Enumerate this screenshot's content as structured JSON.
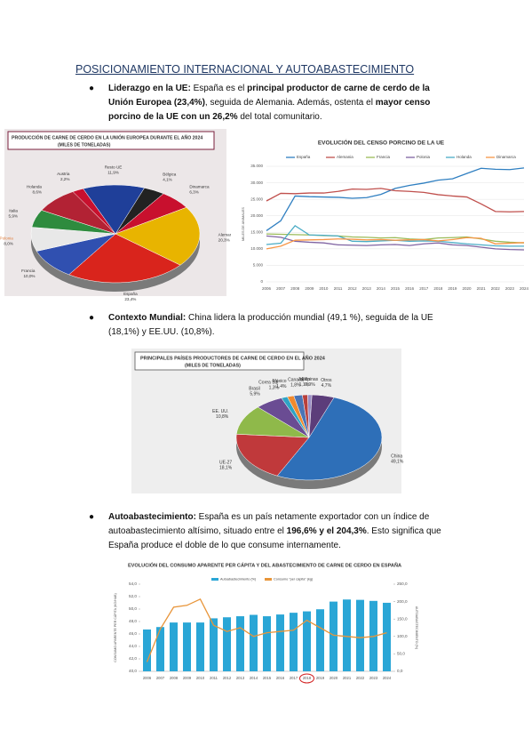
{
  "document": {
    "heading": "POSICIONAMIENTO INTERNACIONAL Y AUTOABASTECIMIENTO",
    "bullets": [
      {
        "runs": [
          {
            "text": "Liderazgo en la UE:",
            "bold": true
          },
          {
            "text": " España es el ",
            "bold": false
          },
          {
            "text": "principal productor de carne de cerdo de la Unión Europea (23,4%)",
            "bold": true
          },
          {
            "text": ", seguida de Alemania. Además, ostenta el ",
            "bold": false
          },
          {
            "text": "mayor censo porcino de la UE con un 26,2%",
            "bold": true
          },
          {
            "text": " del total comunitario.",
            "bold": false
          }
        ]
      },
      {
        "runs": [
          {
            "text": "Contexto Mundial:",
            "bold": true
          },
          {
            "text": " China lidera la producción mundial (49,1 %), seguida de la UE (18,1%) y EE.UU. (10,8%).",
            "bold": false
          }
        ]
      },
      {
        "runs": [
          {
            "text": "Autoabastecimiento:",
            "bold": true
          },
          {
            "text": " España es un país netamente exportador con un índice de autoabastecimiento altísimo, situado entre el ",
            "bold": false
          },
          {
            "text": "196,6% y el 204,3%",
            "bold": true
          },
          {
            "text": ". Esto significa que España produce el doble de lo que consume internamente.",
            "bold": false
          }
        ]
      }
    ]
  },
  "chart_data": [
    {
      "type": "pie",
      "title": "PRODUCCIÓN DE CARNE DE CERDO EN LA UNIÓN EUROPEA DURANTE EL AÑO 2024",
      "subtitle": "(MILES DE TONELADAS)",
      "categories": [
        "Bélgica",
        "Dinamarca",
        "Alemania",
        "España",
        "Francia",
        "Polonia",
        "Italia",
        "Holanda",
        "Austria",
        "Resto UE"
      ],
      "values": [
        4.1,
        6.3,
        20.3,
        23.4,
        10.0,
        8.0,
        5.9,
        8.6,
        2.2,
        11.9
      ],
      "value_labels": [
        "4,1%",
        "6,3%",
        "20,3%",
        "23,4%",
        "10,0%",
        "8,0%",
        "5,9%",
        "8,6%",
        "2,2%",
        "11,9%"
      ],
      "colors": [
        "#222222",
        "#c8102e",
        "#e8b400",
        "#d9241c",
        "#3050b0",
        "#e8e8e8",
        "#2e8b3e",
        "#b22234",
        "#c8102e",
        "#1f3f99"
      ]
    },
    {
      "type": "line",
      "title": "EVOLUCIÓN DEL CENSO PORCINO DE LA UE",
      "y_label": "MILES DE ANIMALES",
      "categories": [
        "2006",
        "2007",
        "2008",
        "2009",
        "2010",
        "2011",
        "2012",
        "2013",
        "2014",
        "2015",
        "2016",
        "2017",
        "2018",
        "2019",
        "2020",
        "2021",
        "2022",
        "2023",
        "2024"
      ],
      "series": [
        {
          "name": "España",
          "color": "#2f7fc1",
          "values": [
            15500,
            18500,
            26000,
            25800,
            25700,
            25600,
            25300,
            25500,
            26500,
            28300,
            29200,
            29900,
            30800,
            31200,
            32800,
            34400,
            34100,
            34000,
            34500
          ]
        },
        {
          "name": "Alemania",
          "color": "#c0504d",
          "values": [
            24500,
            26800,
            26700,
            26900,
            26900,
            27400,
            28100,
            28000,
            28300,
            27600,
            27400,
            27100,
            26400,
            26000,
            25700,
            23600,
            21300,
            21200,
            21300
          ]
        },
        {
          "name": "Francia",
          "color": "#9bbb59",
          "values": [
            14500,
            14400,
            14300,
            14200,
            14000,
            13900,
            13600,
            13500,
            13300,
            13400,
            13000,
            12800,
            13300,
            13400,
            13600,
            13000,
            12300,
            12000,
            11800
          ]
        },
        {
          "name": "Polonia",
          "color": "#8064a2",
          "values": [
            13900,
            13500,
            12300,
            12000,
            11800,
            11200,
            11100,
            11000,
            11200,
            11300,
            11000,
            11500,
            11800,
            11200,
            11000,
            10500,
            10000,
            9800,
            9700
          ]
        },
        {
          "name": "Holanda",
          "color": "#4bacc6",
          "values": [
            11300,
            11700,
            17000,
            14200,
            14100,
            13900,
            12300,
            12200,
            12400,
            12600,
            12300,
            12400,
            12300,
            11900,
            11500,
            11200,
            10900,
            10800,
            10800
          ]
        },
        {
          "name": "Dinamarca",
          "color": "#f79646",
          "values": [
            10000,
            10800,
            12600,
            12700,
            12800,
            13000,
            12900,
            12700,
            12800,
            12600,
            12700,
            12800,
            12400,
            12800,
            13400,
            13200,
            11500,
            11700,
            11900
          ]
        }
      ],
      "ylim": [
        0,
        35000
      ],
      "yticks": [
        0,
        {
          "value": 5000,
          "label": "5.000"
        },
        {
          "value": 10000,
          "label": "10.000"
        },
        {
          "value": 15000,
          "label": "15.000"
        },
        {
          "value": 20000,
          "label": "20.000"
        },
        {
          "value": 25000,
          "label": "25.000"
        },
        {
          "value": 30000,
          "label": "30.000"
        },
        {
          "value": 35000,
          "label": "35.000"
        }
      ],
      "grid": true
    },
    {
      "type": "pie",
      "title": "PRINCIPALES PAÍSES PRODUCTORES DE CARNE DE CERDO EN EL AÑO 2024",
      "subtitle": "(MILES DE TONELADAS)",
      "categories": [
        "China",
        "UE-27",
        "EE. UU.",
        "Brasil",
        "Corea Sur",
        "México",
        "Canadá",
        "Japón",
        "Filipinas",
        "Otros"
      ],
      "values": [
        49.1,
        18.1,
        10.8,
        5.9,
        1.3,
        1.4,
        1.8,
        1.1,
        0.9,
        4.7
      ],
      "value_labels": [
        "49,1%",
        "18,1%",
        "10,8%",
        "5,9%",
        "1,3%",
        "1,4%",
        "1,8%",
        "1,1%",
        "0,9%",
        "4,7%"
      ],
      "colors": [
        "#2e6fb8",
        "#c0393b",
        "#8fb94a",
        "#6a4c93",
        "#2fa3c4",
        "#f08a2e",
        "#4a74b5",
        "#b8403c",
        "#9a8ec4",
        "#5c3d7a"
      ]
    },
    {
      "type": "combo",
      "title": "EVOLUCIÓN DEL CONSUMO APARENTE PER CÁPITA Y DEL ABASTECIMIENTO DE CARNE DE CERDO EN ESPAÑA",
      "y_label": "CONSUMO APARENTE PER CÁPITA (KG/HAB)",
      "y2_label": "AUTOABASTECIMIENTO (%)",
      "categories": [
        "2006",
        "2007",
        "2008",
        "2009",
        "2010",
        "2011",
        "2012",
        "2013",
        "2014",
        "2015",
        "2016",
        "2017",
        "2018",
        "2019",
        "2020",
        "2021",
        "2022",
        "2023",
        "2024"
      ],
      "series": [
        {
          "name": "Autoabastecimiento (%)",
          "color": "#2aa6d6",
          "axis": "y2",
          "kind": "bar",
          "values": [
            120,
            127,
            140,
            140,
            140,
            152,
            155,
            158,
            162,
            158,
            163,
            168,
            172,
            178,
            200,
            206,
            205,
            202,
            196.6
          ]
        },
        {
          "name": "Consumo \"per cápita\" (kg)",
          "color": "#e8953a",
          "kind": "line",
          "values": [
            41.5,
            46.8,
            50.3,
            50.6,
            51.6,
            47.4,
            46.4,
            47.0,
            45.6,
            46.2,
            46.4,
            46.6,
            48.2,
            47.0,
            45.8,
            45.6,
            45.4,
            45.6,
            46.2
          ]
        }
      ],
      "ylim": [
        40,
        54
      ],
      "yticks": [
        {
          "value": 40,
          "label": "40,0"
        },
        {
          "value": 42,
          "label": "42,0"
        },
        {
          "value": 44,
          "label": "44,0"
        },
        {
          "value": 46,
          "label": "46,0"
        },
        {
          "value": 48,
          "label": "48,0"
        },
        {
          "value": 50,
          "label": "50,0"
        },
        {
          "value": 52,
          "label": "52,0"
        },
        {
          "value": 54,
          "label": "54,0"
        }
      ],
      "y2lim": [
        0,
        250
      ],
      "y2ticks": [
        {
          "value": 0,
          "label": "0,0"
        },
        {
          "value": 50,
          "label": "50,0"
        },
        {
          "value": 100,
          "label": "100,0"
        },
        {
          "value": 150,
          "label": "150,0"
        },
        {
          "value": 200,
          "label": "200,0"
        },
        {
          "value": 250,
          "label": "250,0"
        }
      ],
      "highlight": "2018"
    }
  ]
}
